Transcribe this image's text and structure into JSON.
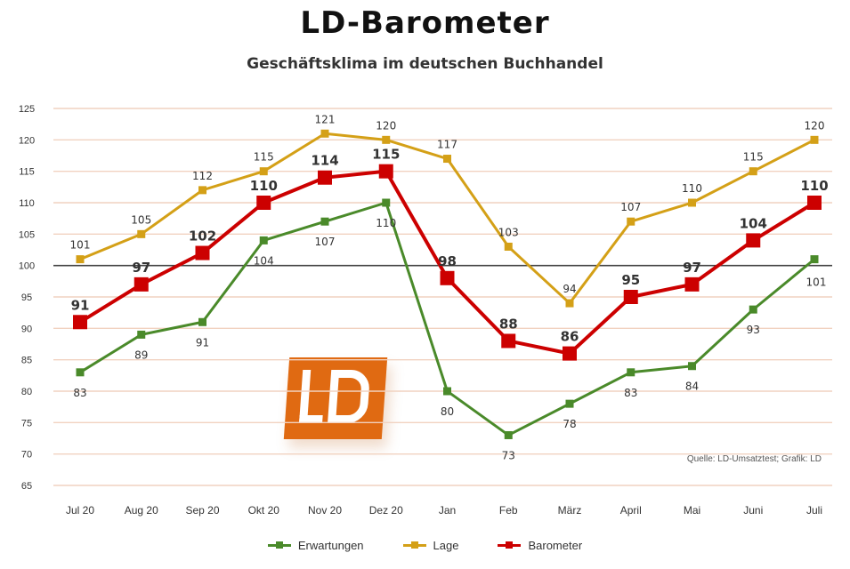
{
  "chart_data": {
    "type": "line",
    "title": "LD-Barometer",
    "subtitle": "Geschäftsklima im deutschen Buchhandel",
    "categories": [
      "Jul 20",
      "Aug 20",
      "Sep 20",
      "Okt 20",
      "Nov 20",
      "Dez 20",
      "Jan",
      "Feb",
      "März",
      "April",
      "Mai",
      "Juni",
      "Juli"
    ],
    "ylim": [
      65,
      125
    ],
    "yticks": [
      65,
      70,
      75,
      80,
      85,
      90,
      95,
      100,
      105,
      110,
      115,
      120,
      125
    ],
    "reference_line": 100,
    "grid": true,
    "legend_position": "bottom",
    "source": "Quelle: LD-Umsatztest; Grafik: LD",
    "series": [
      {
        "name": "Erwartungen",
        "color": "#4a8a2a",
        "values": [
          83,
          89,
          91,
          104,
          107,
          110,
          80,
          73,
          78,
          83,
          84,
          93,
          101
        ],
        "labels": [
          "83",
          "89",
          "91",
          "104",
          "107",
          "110",
          "80",
          "73",
          "78",
          "83",
          "84",
          "93",
          "101"
        ],
        "label_position": "below"
      },
      {
        "name": "Lage",
        "color": "#d4a017",
        "values": [
          101,
          105,
          112,
          115,
          121,
          120,
          117,
          103,
          94,
          107,
          110,
          115,
          120
        ],
        "labels": [
          "101",
          "105",
          "112",
          "115",
          "121",
          "120",
          "117",
          "103",
          "94",
          "107",
          "110",
          "115",
          "120"
        ],
        "label_position": "above"
      },
      {
        "name": "Barometer",
        "color": "#cc0000",
        "values": [
          91,
          97,
          102,
          110,
          114,
          115,
          98,
          88,
          86,
          95,
          97,
          104,
          110
        ],
        "labels": [
          "91",
          "97",
          "102",
          "110",
          "114",
          "115",
          "98",
          "88",
          "86",
          "95",
          "97",
          "104",
          "110"
        ],
        "label_position": "above"
      }
    ]
  }
}
